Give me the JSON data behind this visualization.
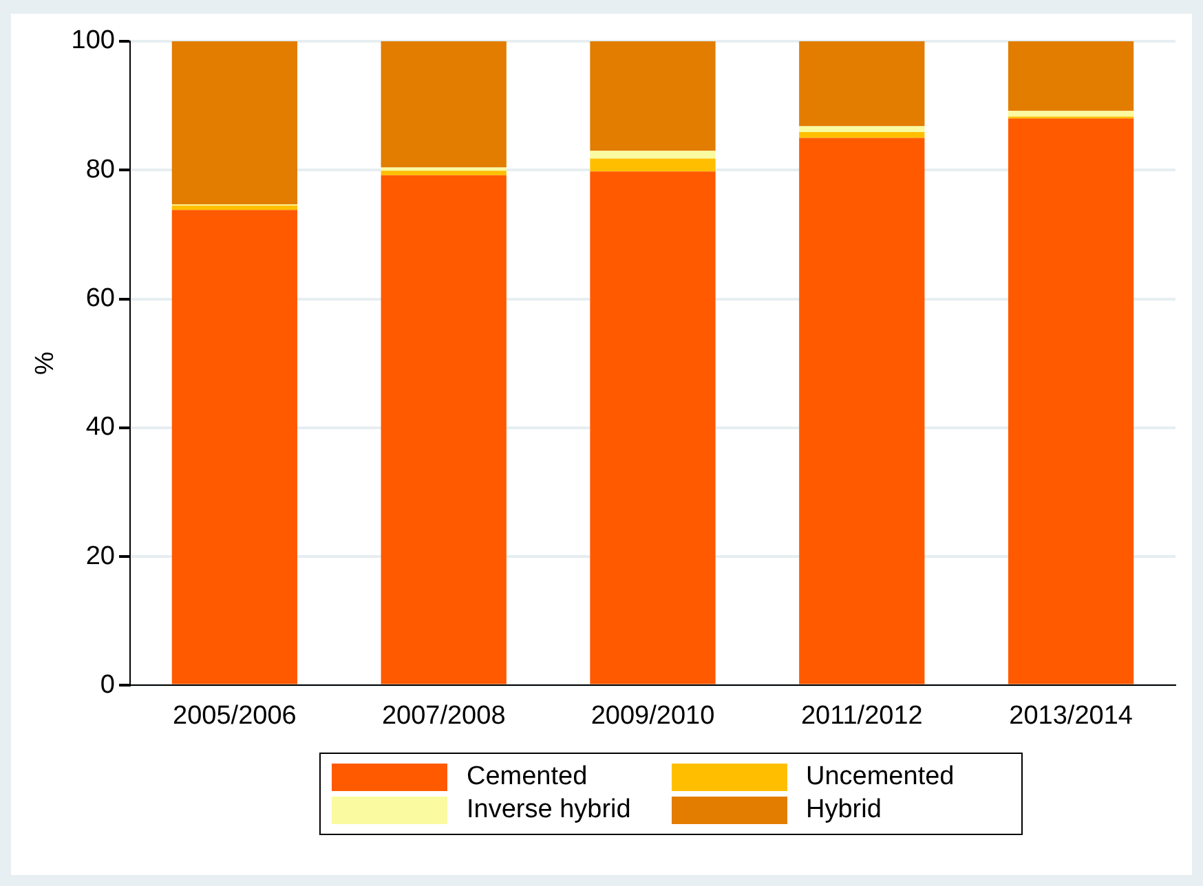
{
  "chart_data": {
    "type": "bar",
    "stacked": true,
    "ylabel": "%",
    "categories": [
      "2005/2006",
      "2007/2008",
      "2009/2010",
      "2011/2012",
      "2013/2014"
    ],
    "series": [
      {
        "name": "Cemented",
        "color": "#ff5a00",
        "values": [
          73.8,
          79.2,
          79.8,
          85.0,
          88.0
        ]
      },
      {
        "name": "Uncemented",
        "color": "#ffbf00",
        "values": [
          0.7,
          0.7,
          2.0,
          0.9,
          0.3
        ]
      },
      {
        "name": "Inverse hybrid",
        "color": "#fafaa0",
        "values": [
          0.2,
          0.5,
          1.2,
          0.9,
          0.9
        ]
      },
      {
        "name": "Hybrid",
        "color": "#e27d00",
        "values": [
          25.3,
          19.6,
          17.0,
          13.2,
          10.8
        ]
      }
    ],
    "ylim": [
      0,
      100
    ],
    "yticks": [
      0,
      20,
      40,
      60,
      80,
      100
    ],
    "grid": "y",
    "legend": "bottom"
  }
}
